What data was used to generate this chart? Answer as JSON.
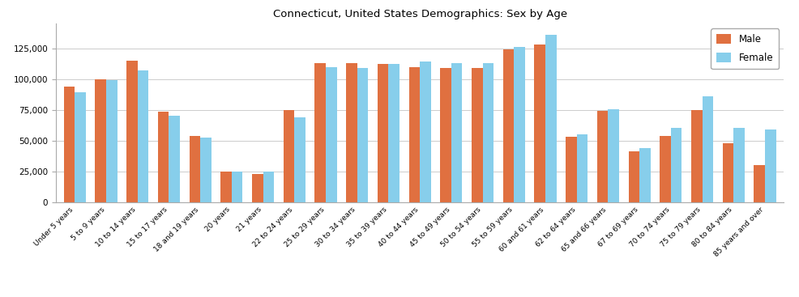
{
  "title": "Connecticut, United States Demographics: Sex by Age",
  "categories": [
    "Under 5 years",
    "5 to 9 years",
    "10 to 14 years",
    "15 to 17 years",
    "18 and 19 years",
    "20 years",
    "21 years",
    "22 to 24 years",
    "25 to 29 years",
    "30 to 34 years",
    "35 to 39 years",
    "40 to 44 years",
    "45 to 49 years",
    "50 to 54 years",
    "55 to 59 years",
    "60 and 61 years",
    "62 to 64 years",
    "65 and 66 years",
    "67 to 69 years",
    "70 to 74 years",
    "75 to 79 years",
    "80 to 84 years",
    "85 years and over"
  ],
  "male": [
    94000,
    99500,
    115000,
    73500,
    53500,
    25000,
    23000,
    75000,
    113000,
    113000,
    112000,
    110000,
    109000,
    109000,
    124000,
    128000,
    53000,
    74000,
    41000,
    53500,
    75000,
    48000,
    30000
  ],
  "female": [
    89000,
    99000,
    107000,
    70000,
    52500,
    25000,
    25000,
    69000,
    110000,
    109000,
    112000,
    114000,
    113000,
    113000,
    126000,
    136000,
    55000,
    75500,
    44000,
    60000,
    86000,
    60000,
    59000
  ],
  "male_color": "#E07040",
  "female_color": "#87CEEB",
  "bar_width": 0.35,
  "ylim": [
    0,
    145000
  ],
  "yticks": [
    0,
    25000,
    50000,
    75000,
    100000,
    125000
  ],
  "background_color": "#ffffff",
  "title_fontsize": 9.5
}
